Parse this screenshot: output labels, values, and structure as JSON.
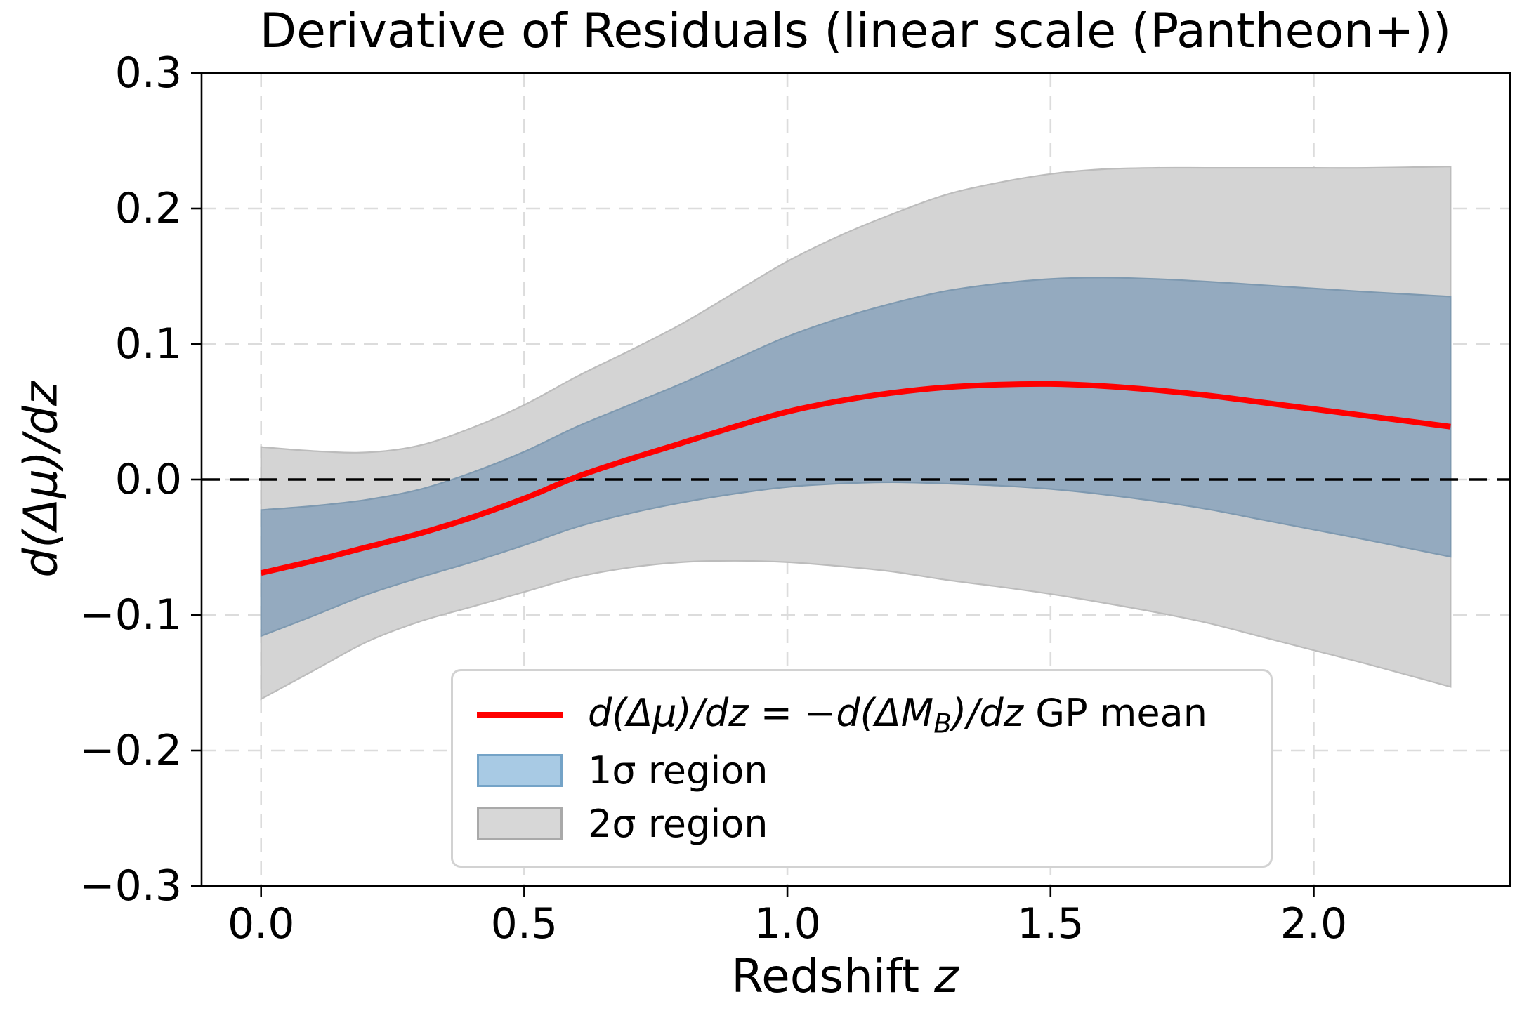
{
  "title": "Derivative of Residuals (linear scale (Pantheon+))",
  "axes": {
    "xlabel": {
      "text": "Redshift ",
      "math": "z"
    },
    "ylabel": "d(Δμ)/dz"
  },
  "legend": {
    "items": [
      {
        "type": "line",
        "label_math": "d(Δμ)/dz = −d(ΔM",
        "label_sub": "B",
        "label_math2": ")/dz",
        "label_tail": " GP mean"
      },
      {
        "type": "patch-1sigma",
        "label": "1σ region"
      },
      {
        "type": "patch-2sigma",
        "label": "2σ region"
      }
    ]
  },
  "colors": {
    "mean_line": "#ff0000",
    "band_1sigma": "#94aabf",
    "band_1sigma_edge": "#7e99b0",
    "band_2sigma": "#d4d4d4",
    "band_2sigma_edge": "#bcbcbc",
    "legend_1sigma_fill": "#a8cae4",
    "legend_1sigma_edge": "#74a3c7",
    "legend_2sigma_fill": "#d7d7d7",
    "legend_2sigma_edge": "#a9a9a9",
    "grid": "#dcdcdc",
    "zero_line": "#000000"
  },
  "chart_data": {
    "type": "line",
    "xlim": [
      -0.113,
      2.373
    ],
    "ylim": [
      -0.3,
      0.3
    ],
    "grid": true,
    "legend_position": "lower center",
    "x_ticks": {
      "values": [
        0.0,
        0.5,
        1.0,
        1.5,
        2.0
      ],
      "labels": [
        "0.0",
        "0.5",
        "1.0",
        "1.5",
        "2.0"
      ]
    },
    "y_ticks": {
      "values": [
        0.3,
        0.2,
        0.1,
        0.0,
        -0.1,
        -0.2,
        -0.3
      ],
      "labels": [
        "0.3",
        "0.2",
        "0.1",
        "0.0",
        "−0.1",
        "−0.2",
        "−0.3"
      ]
    },
    "zero_reference_line": 0.0,
    "z": [
      0.0,
      0.1,
      0.2,
      0.3,
      0.4,
      0.5,
      0.6,
      0.7,
      0.8,
      0.9,
      1.0,
      1.1,
      1.2,
      1.3,
      1.4,
      1.5,
      1.6,
      1.7,
      1.8,
      1.9,
      2.0,
      2.1,
      2.26
    ],
    "gp_mean": [
      -0.069,
      -0.06,
      -0.05,
      -0.04,
      -0.028,
      -0.014,
      0.002,
      0.015,
      0.027,
      0.039,
      0.05,
      0.058,
      0.064,
      0.068,
      0.07,
      0.0705,
      0.069,
      0.066,
      0.062,
      0.057,
      0.052,
      0.047,
      0.039
    ],
    "gp_sigma": [
      0.0465,
      0.0405,
      0.035,
      0.0325,
      0.033,
      0.0345,
      0.037,
      0.04,
      0.044,
      0.0495,
      0.0555,
      0.061,
      0.066,
      0.071,
      0.0745,
      0.0775,
      0.08,
      0.082,
      0.084,
      0.0865,
      0.089,
      0.0915,
      0.096
    ],
    "bands": [
      "mean ± 1σ",
      "mean ± 2σ"
    ]
  }
}
